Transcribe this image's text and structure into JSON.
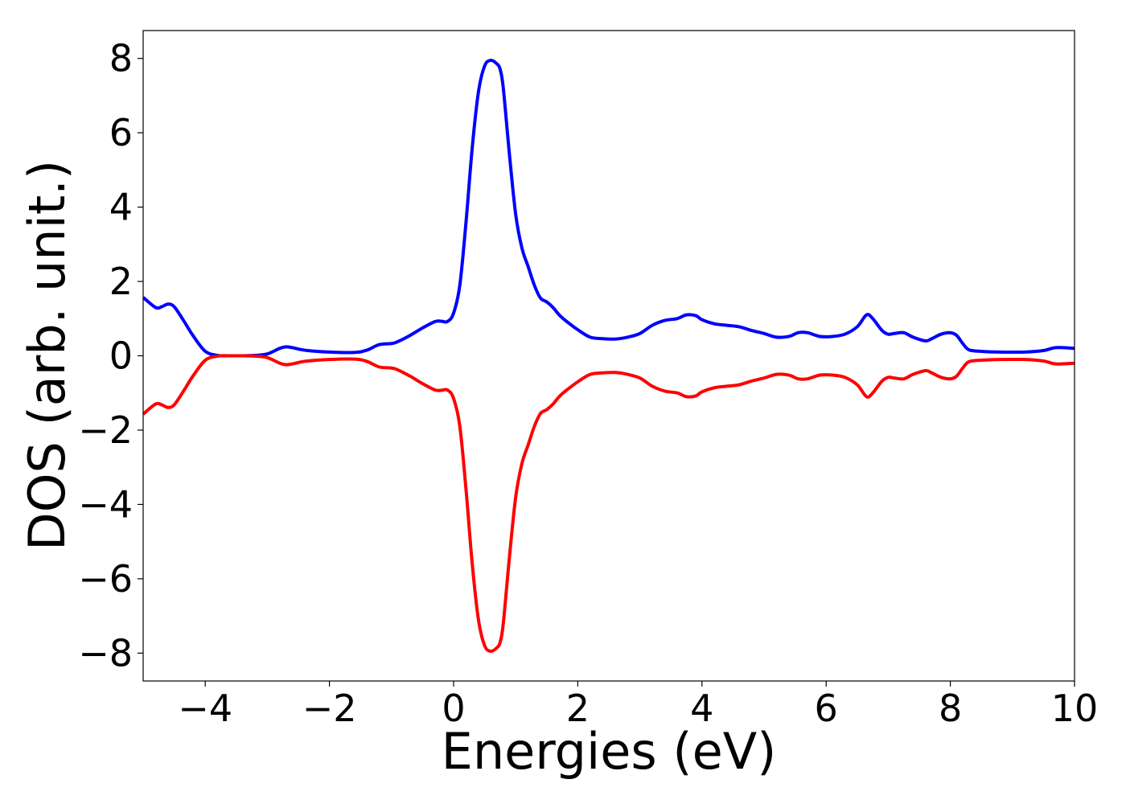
{
  "chart_data": {
    "type": "line",
    "title": "",
    "xlabel": "Energies (eV)",
    "ylabel": "DOS (arb. unit.)",
    "xlim": [
      -5,
      10
    ],
    "ylim": [
      -8.75,
      8.75
    ],
    "x_ticks": [
      -4,
      -2,
      0,
      2,
      4,
      6,
      8,
      10
    ],
    "x_tick_labels": [
      "−4",
      "−2",
      "0",
      "2",
      "4",
      "6",
      "8",
      "10"
    ],
    "y_ticks": [
      8,
      6,
      4,
      2,
      0,
      -2,
      -4,
      -6,
      -8
    ],
    "y_tick_labels": [
      "8",
      "6",
      "4",
      "2",
      "0",
      "−2",
      "−4",
      "−6",
      "−8"
    ],
    "grid": false,
    "legend": "none",
    "series": [
      {
        "color": "#0000ff",
        "x": [
          -5.0,
          -4.8,
          -4.7,
          -4.6,
          -4.5,
          -4.35,
          -4.2,
          -4.0,
          -3.8,
          -3.6,
          -3.4,
          -3.2,
          -3.0,
          -2.8,
          -2.7,
          -2.6,
          -2.4,
          -2.0,
          -1.6,
          -1.4,
          -1.2,
          -1.0,
          -0.9,
          -0.7,
          -0.5,
          -0.3,
          -0.2,
          -0.1,
          0.0,
          0.1,
          0.2,
          0.3,
          0.4,
          0.5,
          0.6,
          0.7,
          0.75,
          0.8,
          0.9,
          1.0,
          1.1,
          1.2,
          1.3,
          1.4,
          1.5,
          1.6,
          1.7,
          1.8,
          2.0,
          2.2,
          2.4,
          2.6,
          2.8,
          3.0,
          3.2,
          3.4,
          3.6,
          3.75,
          3.9,
          4.0,
          4.2,
          4.4,
          4.6,
          4.8,
          5.0,
          5.2,
          5.4,
          5.55,
          5.7,
          5.9,
          6.1,
          6.3,
          6.5,
          6.65,
          6.75,
          6.9,
          7.0,
          7.1,
          7.25,
          7.4,
          7.6,
          7.7,
          7.85,
          8.0,
          8.1,
          8.2,
          8.3,
          8.5,
          8.8,
          9.2,
          9.5,
          9.7,
          10.0
        ],
        "y": [
          1.57,
          1.3,
          1.32,
          1.39,
          1.32,
          0.95,
          0.55,
          0.12,
          0.01,
          0.0,
          0.0,
          0.01,
          0.05,
          0.2,
          0.24,
          0.22,
          0.15,
          0.1,
          0.09,
          0.15,
          0.3,
          0.33,
          0.38,
          0.55,
          0.75,
          0.92,
          0.93,
          0.92,
          1.15,
          1.9,
          3.6,
          5.6,
          7.1,
          7.8,
          7.95,
          7.85,
          7.7,
          7.2,
          5.4,
          3.8,
          2.9,
          2.4,
          1.9,
          1.55,
          1.45,
          1.3,
          1.1,
          0.95,
          0.7,
          0.5,
          0.46,
          0.45,
          0.5,
          0.6,
          0.82,
          0.95,
          1.0,
          1.1,
          1.08,
          0.97,
          0.86,
          0.82,
          0.78,
          0.68,
          0.6,
          0.5,
          0.52,
          0.62,
          0.62,
          0.52,
          0.52,
          0.58,
          0.78,
          1.1,
          1.0,
          0.68,
          0.58,
          0.6,
          0.62,
          0.5,
          0.4,
          0.46,
          0.58,
          0.62,
          0.55,
          0.33,
          0.16,
          0.12,
          0.1,
          0.1,
          0.14,
          0.22,
          0.2
        ]
      },
      {
        "color": "#ff0000",
        "x": [
          -5.0,
          -4.8,
          -4.7,
          -4.6,
          -4.5,
          -4.35,
          -4.2,
          -4.0,
          -3.8,
          -3.6,
          -3.4,
          -3.2,
          -3.0,
          -2.8,
          -2.7,
          -2.6,
          -2.4,
          -2.0,
          -1.6,
          -1.4,
          -1.2,
          -1.0,
          -0.9,
          -0.7,
          -0.5,
          -0.3,
          -0.2,
          -0.1,
          0.0,
          0.1,
          0.2,
          0.3,
          0.4,
          0.5,
          0.6,
          0.7,
          0.75,
          0.8,
          0.9,
          1.0,
          1.1,
          1.2,
          1.3,
          1.4,
          1.5,
          1.6,
          1.7,
          1.8,
          2.0,
          2.2,
          2.4,
          2.6,
          2.8,
          3.0,
          3.2,
          3.4,
          3.6,
          3.75,
          3.9,
          4.0,
          4.2,
          4.4,
          4.6,
          4.8,
          5.0,
          5.2,
          5.4,
          5.55,
          5.7,
          5.9,
          6.1,
          6.3,
          6.5,
          6.65,
          6.75,
          6.9,
          7.0,
          7.1,
          7.25,
          7.4,
          7.6,
          7.7,
          7.85,
          8.0,
          8.1,
          8.2,
          8.3,
          8.5,
          8.8,
          9.2,
          9.5,
          9.7,
          10.0
        ],
        "y": [
          -1.57,
          -1.3,
          -1.32,
          -1.39,
          -1.32,
          -0.95,
          -0.55,
          -0.12,
          -0.01,
          0.0,
          0.0,
          -0.01,
          -0.05,
          -0.2,
          -0.24,
          -0.22,
          -0.15,
          -0.1,
          -0.09,
          -0.15,
          -0.3,
          -0.33,
          -0.38,
          -0.55,
          -0.75,
          -0.92,
          -0.93,
          -0.92,
          -1.15,
          -1.9,
          -3.6,
          -5.6,
          -7.1,
          -7.8,
          -7.95,
          -7.85,
          -7.7,
          -7.2,
          -5.4,
          -3.8,
          -2.9,
          -2.4,
          -1.9,
          -1.55,
          -1.45,
          -1.3,
          -1.1,
          -0.95,
          -0.7,
          -0.5,
          -0.46,
          -0.45,
          -0.5,
          -0.6,
          -0.82,
          -0.95,
          -1.0,
          -1.1,
          -1.08,
          -0.97,
          -0.86,
          -0.82,
          -0.78,
          -0.68,
          -0.6,
          -0.5,
          -0.52,
          -0.62,
          -0.62,
          -0.52,
          -0.52,
          -0.58,
          -0.78,
          -1.1,
          -1.0,
          -0.68,
          -0.58,
          -0.6,
          -0.62,
          -0.5,
          -0.4,
          -0.46,
          -0.58,
          -0.62,
          -0.55,
          -0.33,
          -0.16,
          -0.12,
          -0.1,
          -0.1,
          -0.14,
          -0.22,
          -0.2
        ]
      }
    ]
  }
}
